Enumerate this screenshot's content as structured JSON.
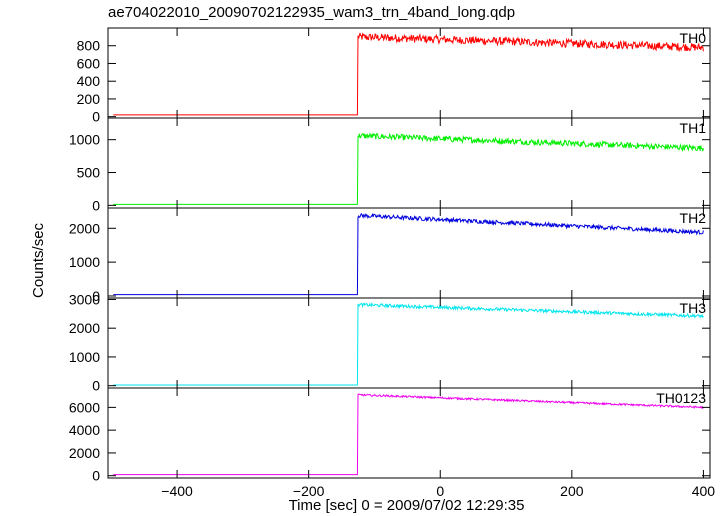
{
  "chart_data": {
    "type": "line",
    "title": "ae704022010_20090702122935_wam3_trn_4band_long.qdp",
    "xlabel": "Time [sec] 0 = 2009/07/02 12:29:35",
    "ylabel": "Counts/sec",
    "xlim": [
      -505,
      410
    ],
    "xticks": [
      -400,
      -200,
      0,
      200,
      400
    ],
    "trigger_x": -125,
    "panels": [
      {
        "name": "TH0",
        "color": "#ff0000",
        "ylim": [
          -15,
          1000
        ],
        "yticks": [
          0,
          200,
          400,
          600,
          800
        ],
        "pre": 20,
        "start": 900,
        "end": 780,
        "noise": 45
      },
      {
        "name": "TH1",
        "color": "#00ee00",
        "ylim": [
          -40,
          1330
        ],
        "yticks": [
          0,
          500,
          1000
        ],
        "pre": 15,
        "start": 1060,
        "end": 870,
        "noise": 45
      },
      {
        "name": "TH2",
        "color": "#0000dd",
        "ylim": [
          -60,
          2600
        ],
        "yticks": [
          0,
          1000,
          2000
        ],
        "pre": 40,
        "start": 2380,
        "end": 1880,
        "noise": 60
      },
      {
        "name": "TH3",
        "color": "#00e5ee",
        "ylim": [
          -80,
          3050
        ],
        "yticks": [
          0,
          1000,
          2000,
          3000
        ],
        "pre": 25,
        "start": 2820,
        "end": 2420,
        "noise": 55
      },
      {
        "name": "TH0123",
        "color": "#ee00ee",
        "ylim": [
          -200,
          7700
        ],
        "yticks": [
          0,
          2000,
          4000,
          6000
        ],
        "pre": 100,
        "start": 7100,
        "end": 6000,
        "noise": 80
      }
    ],
    "grid": false,
    "legend": "none"
  }
}
